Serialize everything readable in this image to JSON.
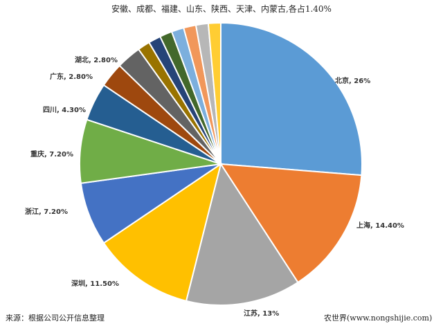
{
  "chart_data": {
    "type": "pie",
    "title": "",
    "start_angle": "12 o'clock, clockwise",
    "slices": [
      {
        "label": "北京, 26%",
        "value": 26,
        "color": "#5B9BD5"
      },
      {
        "label": "上海, 14.40%",
        "value": 14.4,
        "color": "#ED7D31"
      },
      {
        "label": "江苏, 13%",
        "value": 13,
        "color": "#A5A5A5"
      },
      {
        "label": "深圳, 11.50%",
        "value": 11.5,
        "color": "#FFC000"
      },
      {
        "label": "浙江, 7.20%",
        "value": 7.2,
        "color": "#4472C4"
      },
      {
        "label": "重庆, 7.20%",
        "value": 7.2,
        "color": "#70AD47"
      },
      {
        "label": "四川, 4.30%",
        "value": 4.3,
        "color": "#255E91"
      },
      {
        "label": "广东, 2.80%",
        "value": 2.8,
        "color": "#9E480E"
      },
      {
        "label": "湖北, 2.80%",
        "value": 2.8,
        "color": "#636363"
      },
      {
        "label": "",
        "value": 1.4,
        "color": "#997300"
      },
      {
        "label": "",
        "value": 1.4,
        "color": "#264478"
      },
      {
        "label": "",
        "value": 1.4,
        "color": "#43682B"
      },
      {
        "label": "",
        "value": 1.4,
        "color": "#7CAFDD"
      },
      {
        "label": "",
        "value": 1.4,
        "color": "#F1975A"
      },
      {
        "label": "",
        "value": 1.4,
        "color": "#B7B7B7"
      },
      {
        "label": "",
        "value": 1.4,
        "color": "#FFCD33"
      }
    ],
    "group_label": "安徽、成都、福建、山东、陕西、天津、内蒙古,各占1.40%"
  },
  "footer": {
    "source": "来源：根据公司公开信息整理",
    "watermark": "农世界(www.nongshijie.com)"
  }
}
